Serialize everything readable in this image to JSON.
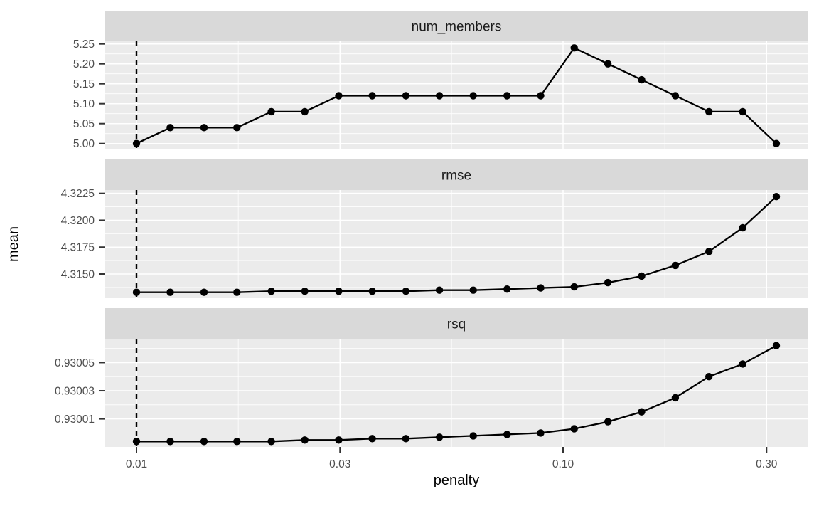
{
  "figure": {
    "y_axis": {
      "label": "mean"
    },
    "x_axis": {
      "label": "penalty",
      "scale": "log10",
      "domain_log10": [
        -2.075,
        -0.425
      ],
      "tick_values": [
        0.01,
        0.03,
        0.1,
        0.3
      ],
      "tick_labels": [
        "0.01",
        "0.03",
        "0.10",
        "0.30"
      ],
      "minor_tick_values": [
        0.017321,
        0.054772,
        0.173205
      ]
    },
    "vline": {
      "x": 0.01,
      "linetype": "dashed"
    },
    "colors": {
      "background": "#FFFFFF",
      "panel_background": "#EBEBEB",
      "strip_background": "#D9D9D9",
      "grid": "#FFFFFF",
      "line": "#000000",
      "point": "#000000",
      "axis_text": "#4D4D4D",
      "strip_text": "#1A1A1A",
      "title_text": "#000000",
      "tick_mark": "#333333"
    }
  },
  "chart_data": [
    {
      "type": "line",
      "facet": "num_members",
      "xlabel": "penalty",
      "ylabel": "mean",
      "x": [
        0.01,
        0.012,
        0.0144,
        0.0172,
        0.0207,
        0.0248,
        0.0298,
        0.0357,
        0.0428,
        0.0513,
        0.0616,
        0.0739,
        0.0886,
        0.1062,
        0.1274,
        0.1528,
        0.1833,
        0.2198,
        0.2637,
        0.3162
      ],
      "values": [
        5.0,
        5.04,
        5.04,
        5.04,
        5.08,
        5.08,
        5.12,
        5.12,
        5.12,
        5.12,
        5.12,
        5.12,
        5.12,
        5.24,
        5.2,
        5.16,
        5.12,
        5.08,
        5.08,
        5.0
      ],
      "ylim": [
        4.9852,
        5.2566
      ],
      "ytick_values": [
        5.0,
        5.05,
        5.1,
        5.15,
        5.2,
        5.25
      ],
      "ytick_labels": [
        "5.00",
        "5.05",
        "5.10",
        "5.15",
        "5.20",
        "5.25"
      ]
    },
    {
      "type": "line",
      "facet": "rmse",
      "xlabel": "penalty",
      "ylabel": "mean",
      "x": [
        0.01,
        0.012,
        0.0144,
        0.0172,
        0.0207,
        0.0248,
        0.0298,
        0.0357,
        0.0428,
        0.0513,
        0.0616,
        0.0739,
        0.0886,
        0.1062,
        0.1274,
        0.1528,
        0.1833,
        0.2198,
        0.2637,
        0.3162
      ],
      "values": [
        4.3133,
        4.3133,
        4.3133,
        4.3133,
        4.3134,
        4.3134,
        4.3134,
        4.3134,
        4.3134,
        4.3135,
        4.3135,
        4.3136,
        4.3137,
        4.3138,
        4.3142,
        4.3148,
        4.3158,
        4.3171,
        4.3193,
        4.3222
      ],
      "ylim": [
        4.31275,
        4.32281
      ],
      "ytick_values": [
        4.315,
        4.3175,
        4.32,
        4.3225
      ],
      "ytick_labels": [
        "4.3150",
        "4.3175",
        "4.3200",
        "4.3225"
      ]
    },
    {
      "type": "line",
      "facet": "rsq",
      "xlabel": "penalty",
      "ylabel": "mean",
      "x": [
        0.01,
        0.012,
        0.0144,
        0.0172,
        0.0207,
        0.0248,
        0.0298,
        0.0357,
        0.0428,
        0.0513,
        0.0616,
        0.0739,
        0.0886,
        0.1062,
        0.1274,
        0.1528,
        0.1833,
        0.2198,
        0.2637,
        0.3162
      ],
      "values": [
        0.929994,
        0.929994,
        0.929994,
        0.929994,
        0.929994,
        0.929995,
        0.929995,
        0.929996,
        0.929996,
        0.929997,
        0.929998,
        0.929999,
        0.93,
        0.930003,
        0.930008,
        0.930015,
        0.930025,
        0.93004,
        0.930049,
        0.930062
      ],
      "ylim": [
        0.9299901,
        0.9300669
      ],
      "ytick_values": [
        0.93001,
        0.93003,
        0.93005
      ],
      "ytick_labels": [
        "0.93001",
        "0.93003",
        "0.93005"
      ]
    }
  ]
}
